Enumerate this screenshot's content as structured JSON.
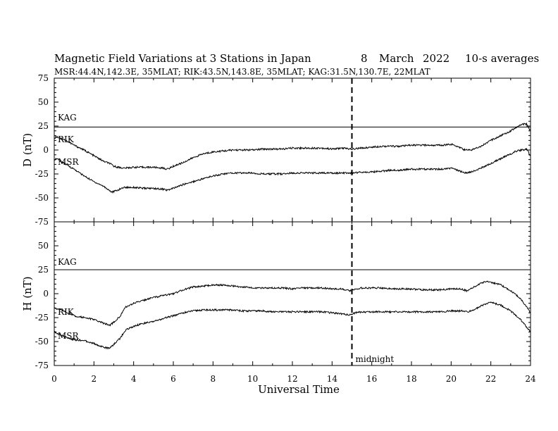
{
  "header": {
    "title_main": "Magnetic Field Variations at 3 Stations in Japan",
    "title_day": "8",
    "title_month": "March",
    "title_year": "2022",
    "title_avg": "10-s averages",
    "subtitle": "MSR:44.4N,142.3E, 35MLAT;  RIK:43.5N,143.8E, 35MLAT;  KAG:31.5N,130.7E, 22MLAT"
  },
  "chart_data": {
    "type": "line",
    "xlabel": "Universal Time",
    "xlim": [
      0,
      24
    ],
    "xticks": [
      0,
      2,
      4,
      6,
      8,
      10,
      12,
      14,
      16,
      18,
      20,
      22,
      24
    ],
    "annotation": {
      "x": 15,
      "label": "midnight",
      "style": "dashed vertical line"
    },
    "panels": [
      {
        "name": "D",
        "ylabel": "D (nT)",
        "ylim": [
          -75,
          75
        ],
        "yticks": [
          75,
          50,
          25,
          0,
          -25,
          -50,
          -75
        ],
        "series": [
          {
            "name": "KAG",
            "x": [
              0,
              24
            ],
            "y": [
              24,
              24
            ]
          },
          {
            "name": "RIK",
            "x": [
              0,
              0.1,
              0.5,
              1,
              1.5,
              2,
              2.5,
              2.8,
              3,
              3.5,
              4,
              4.5,
              5,
              5.5,
              5.7,
              6,
              6.5,
              7,
              7.5,
              8,
              8.5,
              9,
              9.5,
              10,
              10.5,
              11,
              11.5,
              12,
              12.5,
              13,
              13.5,
              14,
              14.5,
              15,
              15.5,
              16,
              16.5,
              17,
              17.5,
              18,
              18.5,
              19,
              19.5,
              20,
              20.3,
              20.7,
              21,
              21.5,
              22,
              22.5,
              23,
              23.3,
              23.6,
              23.8,
              24
            ],
            "y": [
              12,
              14,
              11,
              5,
              0,
              -6,
              -12,
              -14,
              -17,
              -19,
              -18,
              -18,
              -18,
              -19,
              -20,
              -17,
              -13,
              -8,
              -4,
              -2,
              -1,
              0,
              0,
              0,
              1,
              1,
              1,
              2,
              2,
              2,
              2,
              1,
              2,
              1,
              2,
              3,
              4,
              4,
              4,
              5,
              5,
              5,
              5,
              6,
              4,
              0,
              0,
              4,
              10,
              15,
              20,
              24,
              27,
              27,
              20
            ]
          },
          {
            "name": "MSR",
            "x": [
              0,
              0.1,
              0.5,
              1,
              1.5,
              2,
              2.5,
              2.9,
              3.2,
              3.5,
              4,
              4.5,
              5,
              5.5,
              5.7,
              6,
              6.5,
              7,
              7.5,
              8,
              8.5,
              9,
              9.5,
              10,
              10.5,
              11,
              11.5,
              12,
              12.5,
              13,
              13.5,
              14,
              14.5,
              15,
              15.5,
              16,
              16.5,
              17,
              17.5,
              18,
              18.5,
              19,
              19.5,
              20,
              20.3,
              20.7,
              21,
              21.5,
              22,
              22.5,
              23,
              23.3,
              23.6,
              23.8,
              24
            ],
            "y": [
              -10,
              -9,
              -14,
              -20,
              -27,
              -33,
              -38,
              -44,
              -42,
              -39,
              -39,
              -40,
              -40,
              -41,
              -42,
              -40,
              -36,
              -33,
              -30,
              -27,
              -25,
              -24,
              -24,
              -24,
              -25,
              -25,
              -25,
              -24,
              -24,
              -24,
              -24,
              -24,
              -24,
              -24,
              -23,
              -23,
              -22,
              -21,
              -21,
              -20,
              -20,
              -20,
              -20,
              -19,
              -21,
              -24,
              -23,
              -19,
              -14,
              -9,
              -4,
              -1,
              0,
              1,
              -6
            ]
          }
        ]
      },
      {
        "name": "H",
        "ylabel": "H (nT)",
        "ylim": [
          -75,
          75
        ],
        "yticks": [
          75,
          50,
          25,
          0,
          -25,
          -50,
          -75
        ],
        "series": [
          {
            "name": "KAG",
            "x": [
              0,
              24
            ],
            "y": [
              25,
              25
            ]
          },
          {
            "name": "RIK",
            "x": [
              0,
              0.5,
              1,
              1.5,
              2,
              2.5,
              2.8,
              3,
              3.3,
              3.6,
              4,
              4.5,
              5,
              5.5,
              6,
              6.5,
              7,
              7.5,
              8,
              8.5,
              9,
              9.5,
              10,
              10.5,
              11,
              11.5,
              12,
              12.5,
              13,
              13.5,
              14,
              14.5,
              14.9,
              15.2,
              15.5,
              16,
              16.5,
              17,
              17.5,
              18,
              18.5,
              19,
              19.5,
              20,
              20.5,
              20.8,
              21,
              21.5,
              21.8,
              22,
              22.5,
              23,
              23.5,
              24
            ],
            "y": [
              -15,
              -18,
              -23,
              -25,
              -27,
              -31,
              -33,
              -30,
              -24,
              -14,
              -10,
              -7,
              -4,
              -2,
              0,
              4,
              7,
              8,
              9,
              9,
              8,
              7,
              6,
              6,
              6,
              6,
              5,
              6,
              6,
              6,
              5,
              5,
              3,
              5,
              6,
              6,
              6,
              5,
              5,
              5,
              4,
              4,
              4,
              5,
              5,
              3,
              5,
              11,
              13,
              12,
              9,
              3,
              -5,
              -20
            ]
          },
          {
            "name": "MSR",
            "x": [
              0,
              0.5,
              1,
              1.5,
              2,
              2.5,
              2.8,
              3,
              3.3,
              3.6,
              4,
              4.5,
              5,
              5.5,
              6,
              6.5,
              7,
              7.5,
              8,
              8.5,
              9,
              9.5,
              10,
              10.5,
              11,
              11.5,
              12,
              12.5,
              13,
              13.5,
              14,
              14.5,
              14.9,
              15.2,
              15.5,
              16,
              16.5,
              17,
              17.5,
              18,
              18.5,
              19,
              19.5,
              20,
              20.5,
              20.8,
              21,
              21.5,
              21.8,
              22,
              22.5,
              23,
              23.5,
              24
            ],
            "y": [
              -40,
              -45,
              -48,
              -49,
              -52,
              -56,
              -57,
              -53,
              -47,
              -38,
              -34,
              -31,
              -29,
              -26,
              -23,
              -20,
              -18,
              -17,
              -17,
              -17,
              -17,
              -18,
              -18,
              -18,
              -19,
              -19,
              -19,
              -19,
              -19,
              -19,
              -20,
              -21,
              -22,
              -20,
              -19,
              -19,
              -19,
              -19,
              -19,
              -19,
              -19,
              -19,
              -19,
              -18,
              -18,
              -19,
              -18,
              -13,
              -10,
              -9,
              -12,
              -18,
              -27,
              -40
            ]
          }
        ]
      }
    ]
  }
}
